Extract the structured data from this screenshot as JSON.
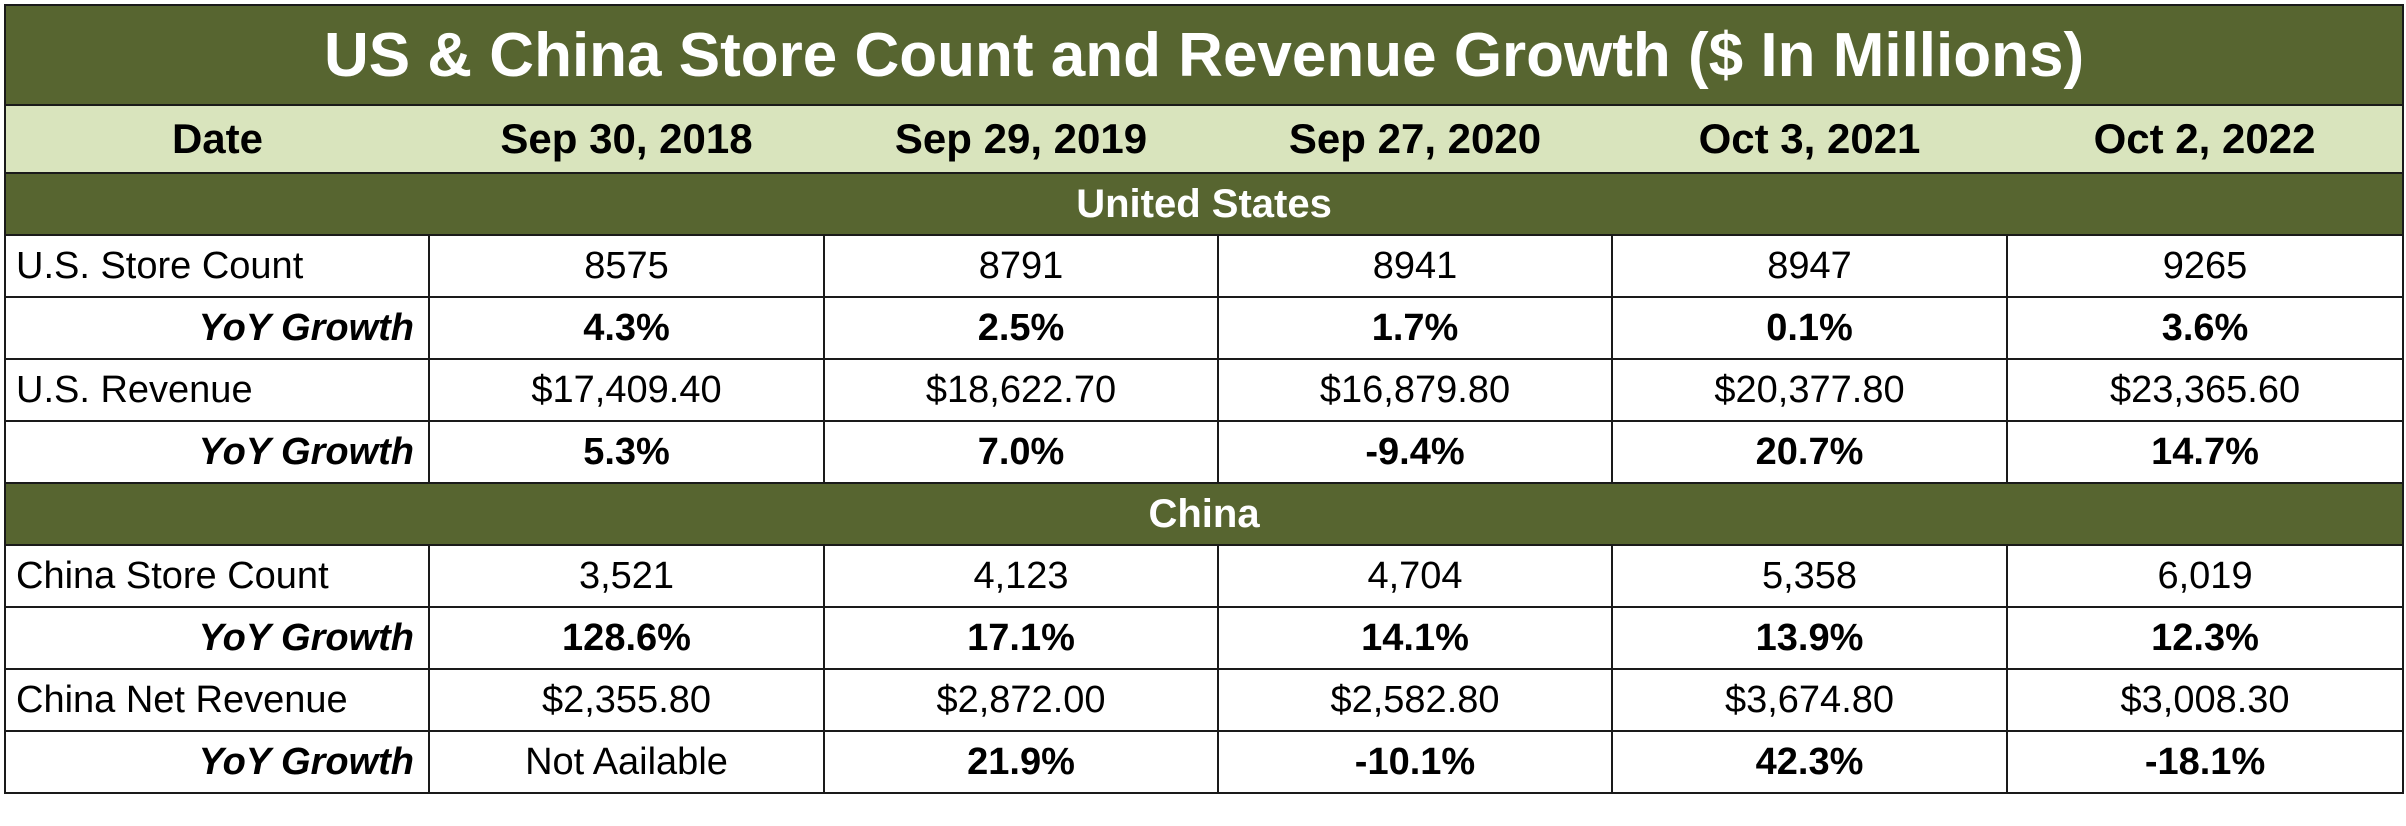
{
  "title": "US & China Store Count and Revenue Growth ($ In Millions)",
  "header": {
    "date_label": "Date",
    "dates": [
      "Sep 30, 2018",
      "Sep 29, 2019",
      "Sep 27, 2020",
      "Oct 3, 2021",
      "Oct 2, 2022"
    ]
  },
  "colors": {
    "dark_green": "#576530",
    "light_green": "#d9e4bd"
  },
  "sections": [
    {
      "name": "United States",
      "rows": [
        {
          "label": "U.S.  Store Count",
          "values": [
            "8575",
            "8791",
            "8941",
            "8947",
            "9265"
          ],
          "kind": "data"
        },
        {
          "label": "YoY Growth",
          "values": [
            "4.3%",
            "2.5%",
            "1.7%",
            "0.1%",
            "3.6%"
          ],
          "kind": "yoy"
        },
        {
          "label": "U.S. Revenue",
          "values": [
            "$17,409.40",
            "$18,622.70",
            "$16,879.80",
            "$20,377.80",
            "$23,365.60"
          ],
          "kind": "data"
        },
        {
          "label": "YoY Growth",
          "values": [
            "5.3%",
            "7.0%",
            "-9.4%",
            "20.7%",
            "14.7%"
          ],
          "kind": "yoy"
        }
      ]
    },
    {
      "name": "China",
      "rows": [
        {
          "label": "China Store Count",
          "values": [
            "3,521",
            "4,123",
            "4,704",
            "5,358",
            "6,019"
          ],
          "kind": "data"
        },
        {
          "label": "YoY Growth",
          "values": [
            "128.6%",
            "17.1%",
            "14.1%",
            "13.9%",
            "12.3%"
          ],
          "kind": "yoy"
        },
        {
          "label": "China Net Revenue",
          "values": [
            "$2,355.80",
            "$2,872.00",
            "$2,582.80",
            "$3,674.80",
            "$3,008.30"
          ],
          "kind": "data"
        },
        {
          "label": "YoY Growth",
          "values": [
            "Not Aailable",
            "21.9%",
            "-10.1%",
            "42.3%",
            "-18.1%"
          ],
          "kind": "yoy"
        }
      ]
    }
  ],
  "chart_data": {
    "type": "table",
    "title": "US & China Store Count and Revenue Growth ($ In Millions)",
    "columns": [
      "Date",
      "Sep 30, 2018",
      "Sep 29, 2019",
      "Sep 27, 2020",
      "Oct 3, 2021",
      "Oct 2, 2022"
    ],
    "series": [
      {
        "name": "U.S.  Store Count",
        "values": [
          8575,
          8791,
          8941,
          8947,
          9265
        ]
      },
      {
        "name": "U.S. Store Count YoY Growth",
        "values": [
          4.3,
          2.5,
          1.7,
          0.1,
          3.6
        ]
      },
      {
        "name": "U.S. Revenue",
        "values": [
          17409.4,
          18622.7,
          16879.8,
          20377.8,
          23365.6
        ]
      },
      {
        "name": "U.S. Revenue YoY Growth",
        "values": [
          5.3,
          7.0,
          -9.4,
          20.7,
          14.7
        ]
      },
      {
        "name": "China Store Count",
        "values": [
          3521,
          4123,
          4704,
          5358,
          6019
        ]
      },
      {
        "name": "China Store Count YoY Growth",
        "values": [
          128.6,
          17.1,
          14.1,
          13.9,
          12.3
        ]
      },
      {
        "name": "China Net Revenue",
        "values": [
          2355.8,
          2872.0,
          2582.8,
          3674.8,
          3008.3
        ]
      },
      {
        "name": "China Net Revenue YoY Growth",
        "values": [
          null,
          21.9,
          -10.1,
          42.3,
          -18.1
        ]
      }
    ]
  }
}
